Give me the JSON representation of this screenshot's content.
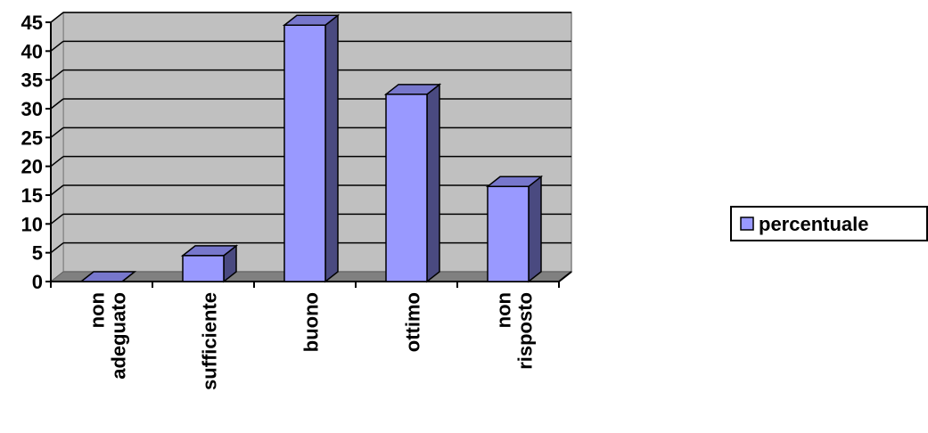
{
  "chart_data": {
    "type": "bar",
    "style": "3d-column",
    "categories": [
      [
        "non",
        "adeguato"
      ],
      [
        "sufficiente"
      ],
      [
        "buono"
      ],
      [
        "ottimo"
      ],
      [
        "non",
        "risposto"
      ]
    ],
    "series": [
      {
        "name": "percentuale",
        "values": [
          0,
          4.5,
          44.5,
          32.5,
          16.5
        ],
        "color": "#9999ff"
      }
    ],
    "ylim": [
      0,
      45
    ],
    "yticks": [
      0,
      5,
      10,
      15,
      20,
      25,
      30,
      35,
      40,
      45
    ],
    "grid": true,
    "legend": "right",
    "colors": {
      "wall": "#c0c0c0",
      "floor": "#808080",
      "bar_front": "#9999ff",
      "bar_side": "#4a4a80",
      "bar_top": "#7777cc"
    }
  }
}
